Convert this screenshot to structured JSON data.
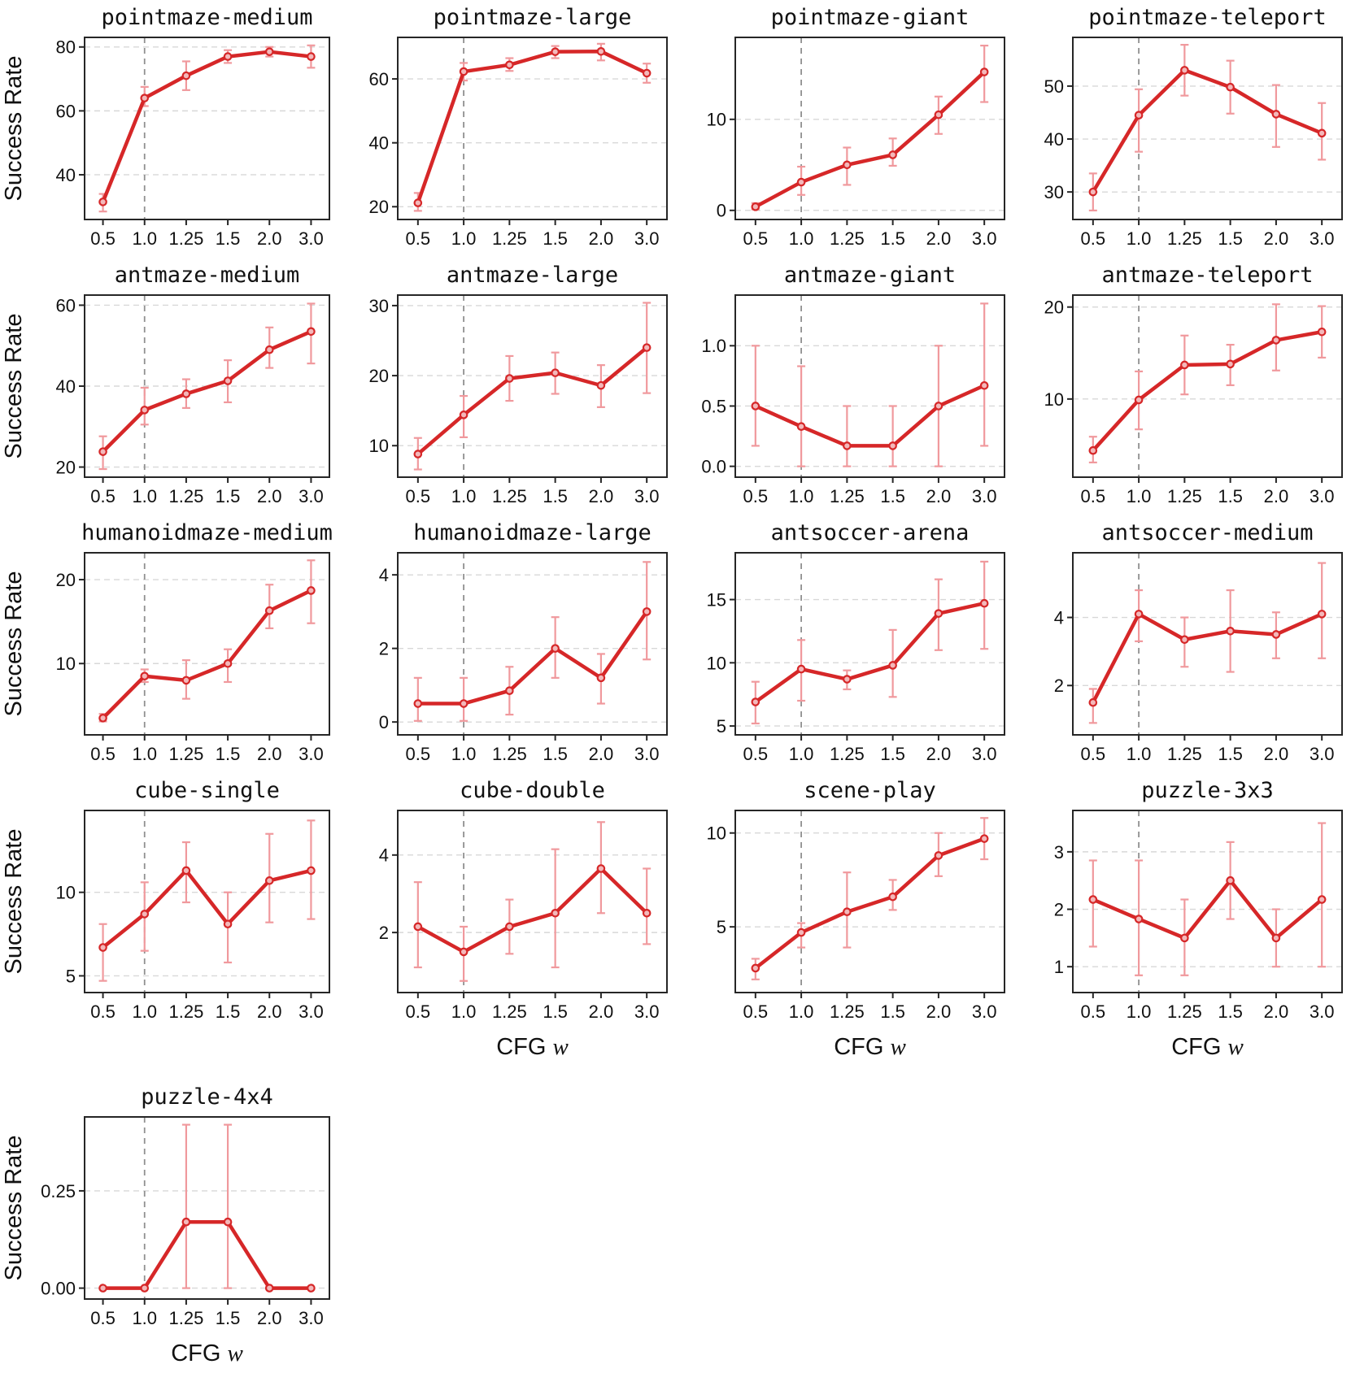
{
  "figure": {
    "ylabel": "Success Rate",
    "xlabel": "CFG w",
    "x_tick_labels": [
      "0.5",
      "1.0",
      "1.25",
      "1.5",
      "2.0",
      "3.0"
    ],
    "vline_index": 1
  },
  "style": {
    "line_color": "#d62728",
    "marker_fill": "#f3b8ba",
    "error_color": "#f0999d",
    "grid_color": "#d8d8d8",
    "vline_color": "#909090",
    "border_color": "#262626",
    "text_color": "#111111",
    "background": "#ffffff"
  },
  "chart_data": [
    {
      "type": "line",
      "title": "pointmaze-medium",
      "ylabel": "Success Rate",
      "xlabel": "",
      "values": [
        31.5,
        64,
        71,
        77,
        78.5,
        77
      ],
      "err_low": [
        28.5,
        61.5,
        66.5,
        75,
        77,
        73.5
      ],
      "err_high": [
        34,
        67.5,
        75.5,
        79,
        80,
        80.5
      ],
      "yticks": [
        40,
        60,
        80
      ],
      "ytick_labels": [
        "40",
        "60",
        "80"
      ],
      "ylim": [
        26,
        83
      ]
    },
    {
      "type": "line",
      "title": "pointmaze-large",
      "ylabel": "",
      "xlabel": "",
      "values": [
        21.2,
        62.3,
        64.4,
        68.5,
        68.6,
        61.8
      ],
      "err_low": [
        18.7,
        59.5,
        62.5,
        66.5,
        65.8,
        58.8
      ],
      "err_high": [
        24.3,
        65,
        66.5,
        70.3,
        71,
        64.8
      ],
      "yticks": [
        20,
        40,
        60
      ],
      "ytick_labels": [
        "20",
        "40",
        "60"
      ],
      "ylim": [
        16,
        73
      ]
    },
    {
      "type": "line",
      "title": "pointmaze-giant",
      "ylabel": "",
      "xlabel": "",
      "values": [
        0.4,
        3.1,
        5.0,
        6.1,
        10.5,
        15.2
      ],
      "err_low": [
        0.1,
        1.7,
        2.8,
        4.9,
        8.4,
        11.9
      ],
      "err_high": [
        0.8,
        4.8,
        6.9,
        7.9,
        12.5,
        18.1
      ],
      "yticks": [
        0,
        10
      ],
      "ytick_labels": [
        "0",
        "10"
      ],
      "ylim": [
        -1,
        19
      ]
    },
    {
      "type": "line",
      "title": "pointmaze-teleport",
      "ylabel": "",
      "xlabel": "",
      "values": [
        30.0,
        44.5,
        53.0,
        49.8,
        44.7,
        41.1
      ],
      "err_low": [
        26.5,
        37.6,
        48.2,
        44.8,
        38.5,
        36.1
      ],
      "err_high": [
        33.5,
        49.4,
        57.8,
        54.8,
        50.2,
        46.8
      ],
      "yticks": [
        30,
        40,
        50
      ],
      "ytick_labels": [
        "30",
        "40",
        "50"
      ],
      "ylim": [
        24.8,
        59.2
      ]
    },
    {
      "type": "line",
      "title": "antmaze-medium",
      "ylabel": "Success Rate",
      "xlabel": "",
      "values": [
        23.8,
        34.1,
        38.1,
        41.3,
        49.0,
        53.5
      ],
      "err_low": [
        19.5,
        30.5,
        34.6,
        36,
        44.5,
        45.6
      ],
      "err_high": [
        27.6,
        39.6,
        41.7,
        46.4,
        54.5,
        60.4
      ],
      "yticks": [
        20,
        40,
        60
      ],
      "ytick_labels": [
        "20",
        "40",
        "60"
      ],
      "ylim": [
        17.5,
        62.5
      ]
    },
    {
      "type": "line",
      "title": "antmaze-large",
      "ylabel": "",
      "xlabel": "",
      "values": [
        8.8,
        14.4,
        19.6,
        20.4,
        18.6,
        24.0
      ],
      "err_low": [
        6.6,
        11.2,
        16.4,
        17.4,
        15.5,
        17.5
      ],
      "err_high": [
        11.1,
        17.1,
        22.8,
        23.3,
        21.5,
        30.4
      ],
      "yticks": [
        10,
        20,
        30
      ],
      "ytick_labels": [
        "10",
        "20",
        "30"
      ],
      "ylim": [
        5.5,
        31.5
      ]
    },
    {
      "type": "line",
      "title": "antmaze-giant",
      "ylabel": "",
      "xlabel": "",
      "values": [
        0.5,
        0.33,
        0.17,
        0.17,
        0.5,
        0.67
      ],
      "err_low": [
        0.17,
        0.0,
        0.0,
        0.0,
        0.0,
        0.17
      ],
      "err_high": [
        1.0,
        0.83,
        0.5,
        0.5,
        1.0,
        1.35
      ],
      "yticks": [
        0.0,
        0.5,
        1.0
      ],
      "ytick_labels": [
        "0.0",
        "0.5",
        "1.0"
      ],
      "ylim": [
        -0.09,
        1.42
      ]
    },
    {
      "type": "line",
      "title": "antmaze-teleport",
      "ylabel": "",
      "xlabel": "",
      "values": [
        4.4,
        9.9,
        13.7,
        13.8,
        16.4,
        17.3
      ],
      "err_low": [
        3.1,
        6.7,
        10.5,
        11.5,
        13.1,
        14.5
      ],
      "err_high": [
        5.9,
        13.0,
        16.9,
        15.9,
        20.3,
        20.1
      ],
      "yticks": [
        10,
        20
      ],
      "ytick_labels": [
        "10",
        "20"
      ],
      "ylim": [
        1.5,
        21.3
      ]
    },
    {
      "type": "line",
      "title": "humanoidmaze-medium",
      "ylabel": "Success Rate",
      "xlabel": "",
      "values": [
        3.5,
        8.5,
        8.0,
        10.0,
        16.3,
        18.7
      ],
      "err_low": [
        3.1,
        7.8,
        5.8,
        7.8,
        14.2,
        14.8
      ],
      "err_high": [
        4.0,
        9.3,
        10.4,
        11.7,
        19.4,
        22.3
      ],
      "yticks": [
        10,
        20
      ],
      "ytick_labels": [
        "10",
        "20"
      ],
      "ylim": [
        1.5,
        23.2
      ]
    },
    {
      "type": "line",
      "title": "humanoidmaze-large",
      "ylabel": "",
      "xlabel": "",
      "values": [
        0.5,
        0.5,
        0.85,
        2.0,
        1.2,
        3.0
      ],
      "err_low": [
        0.03,
        0.03,
        0.2,
        1.2,
        0.5,
        1.7
      ],
      "err_high": [
        1.2,
        1.2,
        1.5,
        2.85,
        1.85,
        4.35
      ],
      "yticks": [
        0,
        2,
        4
      ],
      "ytick_labels": [
        "0",
        "2",
        "4"
      ],
      "ylim": [
        -0.35,
        4.6
      ]
    },
    {
      "type": "line",
      "title": "antsoccer-arena",
      "ylabel": "",
      "xlabel": "",
      "values": [
        6.9,
        9.5,
        8.7,
        9.8,
        13.9,
        14.7
      ],
      "err_low": [
        5.2,
        7.0,
        7.9,
        7.3,
        11.0,
        11.1
      ],
      "err_high": [
        8.5,
        11.8,
        9.4,
        12.6,
        16.6,
        18.0
      ],
      "yticks": [
        5,
        10,
        15
      ],
      "ytick_labels": [
        "5",
        "10",
        "15"
      ],
      "ylim": [
        4.3,
        18.7
      ]
    },
    {
      "type": "line",
      "title": "antsoccer-medium",
      "ylabel": "",
      "xlabel": "",
      "values": [
        1.5,
        4.1,
        3.35,
        3.6,
        3.5,
        4.1
      ],
      "err_low": [
        0.9,
        3.3,
        2.55,
        2.4,
        2.8,
        2.8
      ],
      "err_high": [
        1.9,
        4.8,
        4.0,
        4.8,
        4.15,
        5.6
      ],
      "yticks": [
        2,
        4
      ],
      "ytick_labels": [
        "2",
        "4"
      ],
      "ylim": [
        0.55,
        5.9
      ]
    },
    {
      "type": "line",
      "title": "cube-single",
      "ylabel": "Success Rate",
      "xlabel": "",
      "values": [
        6.7,
        8.7,
        11.3,
        8.1,
        10.7,
        11.3
      ],
      "err_low": [
        4.7,
        6.5,
        9.4,
        5.8,
        8.2,
        8.4
      ],
      "err_high": [
        8.1,
        10.6,
        13.0,
        10.0,
        13.5,
        14.3
      ],
      "yticks": [
        5,
        10
      ],
      "ytick_labels": [
        "5",
        "10"
      ],
      "ylim": [
        4.0,
        14.9
      ]
    },
    {
      "type": "line",
      "title": "cube-double",
      "ylabel": "",
      "xlabel": "CFG w",
      "values": [
        2.15,
        1.5,
        2.15,
        2.5,
        3.65,
        2.5
      ],
      "err_low": [
        1.1,
        0.75,
        1.45,
        1.1,
        2.5,
        1.7
      ],
      "err_high": [
        3.3,
        2.15,
        2.85,
        4.15,
        4.85,
        3.65
      ],
      "yticks": [
        2,
        4
      ],
      "ytick_labels": [
        "2",
        "4"
      ],
      "ylim": [
        0.45,
        5.15
      ]
    },
    {
      "type": "line",
      "title": "scene-play",
      "ylabel": "",
      "xlabel": "CFG w",
      "values": [
        2.8,
        4.7,
        5.8,
        6.6,
        8.8,
        9.7
      ],
      "err_low": [
        2.2,
        3.9,
        3.9,
        5.9,
        7.7,
        8.6
      ],
      "err_high": [
        3.3,
        5.2,
        7.9,
        7.5,
        10.0,
        10.8
      ],
      "yticks": [
        5,
        10
      ],
      "ytick_labels": [
        "5",
        "10"
      ],
      "ylim": [
        1.5,
        11.2
      ]
    },
    {
      "type": "line",
      "title": "puzzle-3x3",
      "ylabel": "",
      "xlabel": "CFG w",
      "values": [
        2.17,
        1.83,
        1.5,
        2.5,
        1.5,
        2.17
      ],
      "err_low": [
        1.35,
        0.85,
        0.85,
        1.83,
        1.0,
        1.0
      ],
      "err_high": [
        2.85,
        2.85,
        2.17,
        3.17,
        2.0,
        3.5
      ],
      "yticks": [
        1,
        2,
        3
      ],
      "ytick_labels": [
        "1",
        "2",
        "3"
      ],
      "ylim": [
        0.55,
        3.72
      ]
    },
    {
      "type": "line",
      "title": "puzzle-4x4",
      "ylabel": "Success Rate",
      "xlabel": "CFG w",
      "values": [
        0.0,
        0.0,
        0.17,
        0.17,
        0.0,
        0.0
      ],
      "err_low": [
        0.0,
        0.0,
        0.0,
        0.0,
        0.0,
        0.0
      ],
      "err_high": [
        0.0,
        0.0,
        0.42,
        0.42,
        0.0,
        0.0
      ],
      "yticks": [
        0.0,
        0.25
      ],
      "ytick_labels": [
        "0.00",
        "0.25"
      ],
      "ylim": [
        -0.028,
        0.44
      ]
    }
  ]
}
